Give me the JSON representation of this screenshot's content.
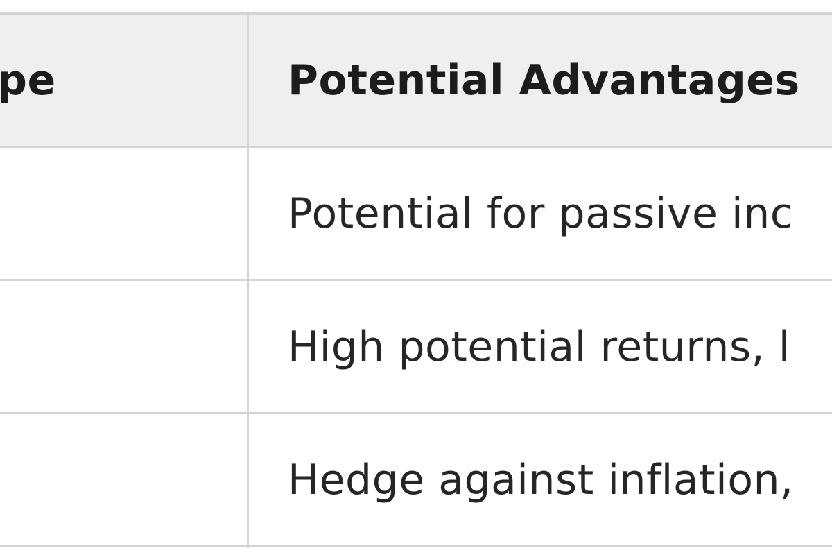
{
  "table": {
    "headers": [
      "pe",
      "Potential Advantages"
    ],
    "rows": [
      {
        "type": "",
        "advantages": "Potential for passive inc"
      },
      {
        "type": "",
        "advantages": "High potential returns, l"
      },
      {
        "type": "",
        "advantages": "Hedge against inflation,"
      }
    ]
  }
}
